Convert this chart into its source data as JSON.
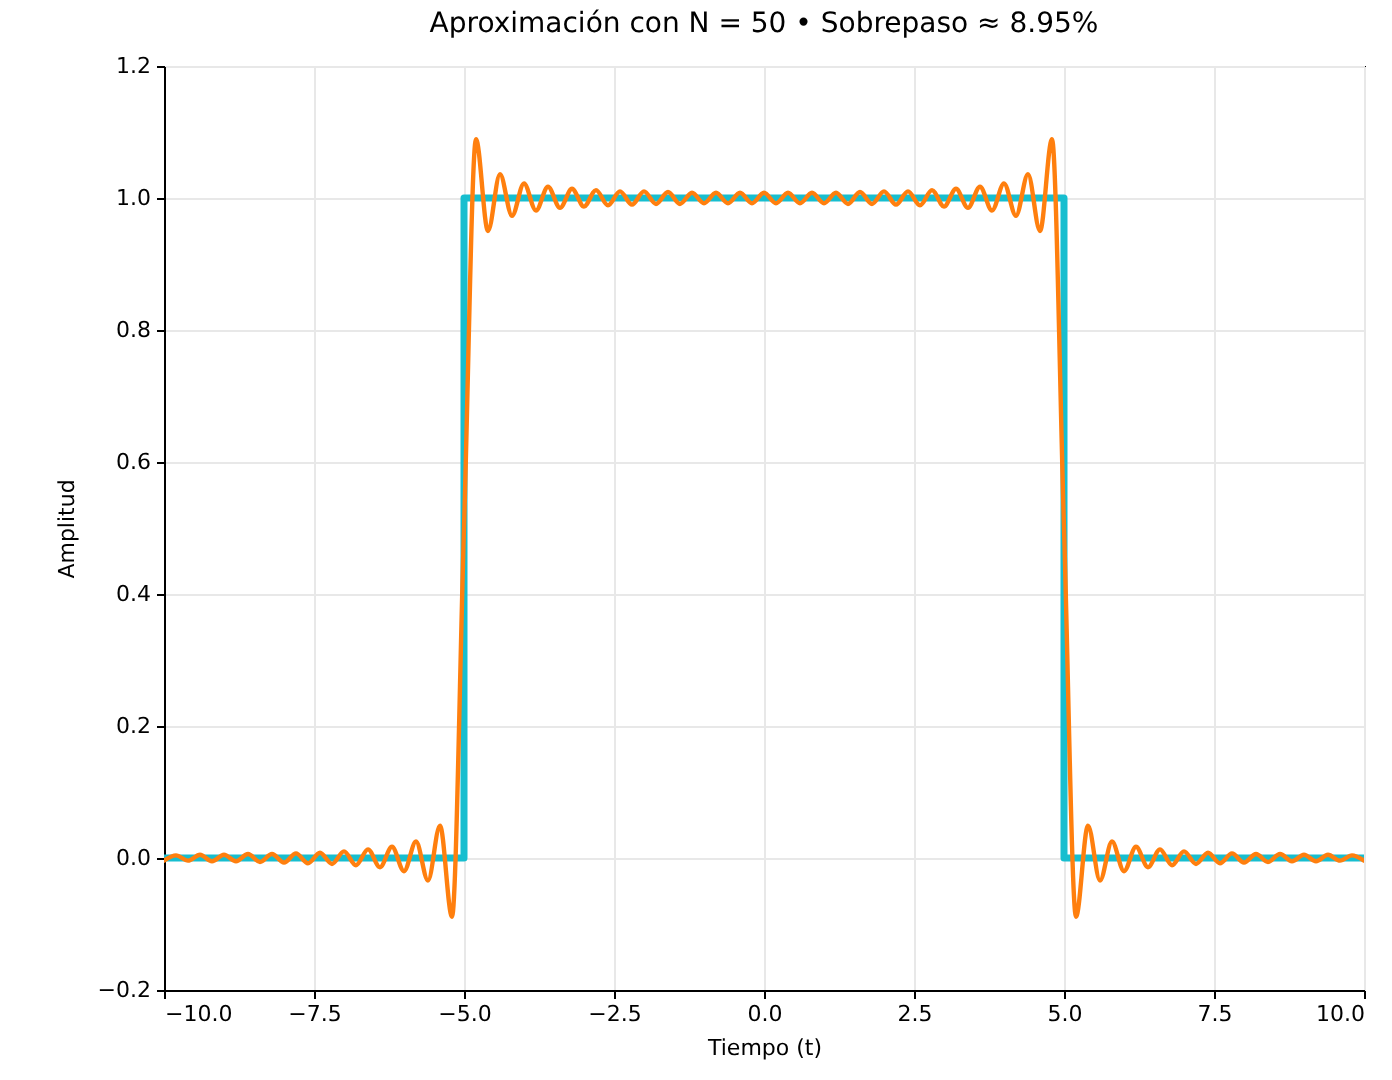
{
  "chart_data": {
    "type": "line",
    "title": "Aproximación con N = 50 • Sobrepaso ≈ 8.95%",
    "xlabel": "Tiempo (t)",
    "ylabel": "Amplitud",
    "xlim": [
      -10,
      10
    ],
    "ylim": [
      -0.2,
      1.2
    ],
    "xticks": [
      {
        "value": -10,
        "label": "−10.0"
      },
      {
        "value": -7.5,
        "label": "−7.5"
      },
      {
        "value": -5,
        "label": "−5.0"
      },
      {
        "value": -2.5,
        "label": "−2.5"
      },
      {
        "value": 0,
        "label": "0.0"
      },
      {
        "value": 2.5,
        "label": "2.5"
      },
      {
        "value": 5,
        "label": "5.0"
      },
      {
        "value": 7.5,
        "label": "7.5"
      },
      {
        "value": 10,
        "label": "10.0"
      }
    ],
    "yticks": [
      {
        "value": -0.2,
        "label": "−0.2"
      },
      {
        "value": 0,
        "label": "0.0"
      },
      {
        "value": 0.2,
        "label": "0.2"
      },
      {
        "value": 0.4,
        "label": "0.4"
      },
      {
        "value": 0.6,
        "label": "0.6"
      },
      {
        "value": 0.8,
        "label": "0.8"
      },
      {
        "value": 1,
        "label": "1.0"
      },
      {
        "value": 1.2,
        "label": "1.2"
      }
    ],
    "grid": true,
    "series": [
      {
        "color": "#17becf",
        "x": [
          -10,
          -5,
          -5,
          5,
          5,
          10
        ],
        "values": [
          0,
          0,
          1,
          1,
          0,
          0
        ]
      },
      {
        "color": "#ff7f0e",
        "x": [
          -10,
          -9.8,
          -9.6,
          -9.4,
          -9.2,
          -9,
          -8.8,
          -8.6,
          -8.4,
          -8.2,
          -8,
          -7.8,
          -7.6,
          -7.4,
          -7.2,
          -7,
          -6.8,
          -6.6,
          -6.4,
          -6.2,
          -6,
          -5.8,
          -5.6,
          -5.4,
          -5.2,
          -5,
          -4.8,
          -4.6,
          -4.4,
          -4.2,
          -4,
          -3.8,
          -3.6,
          -3.4,
          -3.2,
          -3,
          -2.8,
          -2.6,
          -2.4,
          -2.2,
          -2,
          -1.8,
          -1.6,
          -1.4,
          -1.2,
          -1,
          -0.8,
          -0.6,
          -0.4,
          -0.2,
          0,
          0.2,
          0.4,
          0.6,
          0.8,
          1,
          1.2,
          1.4,
          1.6,
          1.8,
          2,
          2.2,
          2.4,
          2.6,
          2.8,
          3,
          3.2,
          3.4,
          3.6,
          3.8,
          4,
          4.2,
          4.4,
          4.6,
          4.8,
          5,
          5.2,
          5.4,
          5.6,
          5.8,
          6,
          6.2,
          6.4,
          6.6,
          6.8,
          7,
          7.2,
          7.4,
          7.6,
          7.8,
          8,
          8.2,
          8.4,
          8.6,
          8.8,
          9,
          9.2,
          9.4,
          9.6,
          9.8,
          10
        ],
        "values": [
          -0.004,
          0.004,
          -0.004,
          0.005,
          -0.005,
          0.005,
          -0.005,
          0.006,
          -0.006,
          0.006,
          -0.007,
          0.007,
          -0.008,
          0.008,
          -0.009,
          0.01,
          -0.011,
          0.013,
          -0.014,
          0.017,
          -0.02,
          0.025,
          -0.034,
          0.049,
          -0.089,
          0.5,
          1.089,
          0.95,
          1.036,
          0.973,
          1.022,
          0.981,
          1.017,
          0.985,
          1.014,
          0.987,
          1.012,
          0.989,
          1.01,
          0.99,
          1.01,
          0.991,
          1.009,
          0.991,
          1.008,
          0.992,
          1.008,
          0.992,
          1.008,
          0.992,
          1.008,
          0.992,
          1.008,
          0.992,
          1.008,
          0.992,
          1.008,
          0.991,
          1.009,
          0.991,
          1.01,
          0.99,
          1.01,
          0.989,
          1.012,
          0.987,
          1.014,
          0.985,
          1.017,
          0.981,
          1.022,
          0.973,
          1.036,
          0.95,
          1.089,
          0.5,
          -0.089,
          0.049,
          -0.034,
          0.025,
          -0.02,
          0.017,
          -0.014,
          0.013,
          -0.011,
          0.01,
          -0.009,
          0.008,
          -0.008,
          0.007,
          -0.007,
          0.006,
          -0.006,
          0.006,
          -0.005,
          0.005,
          -0.005,
          0.005,
          -0.004,
          0.004,
          -0.004
        ]
      }
    ]
  }
}
